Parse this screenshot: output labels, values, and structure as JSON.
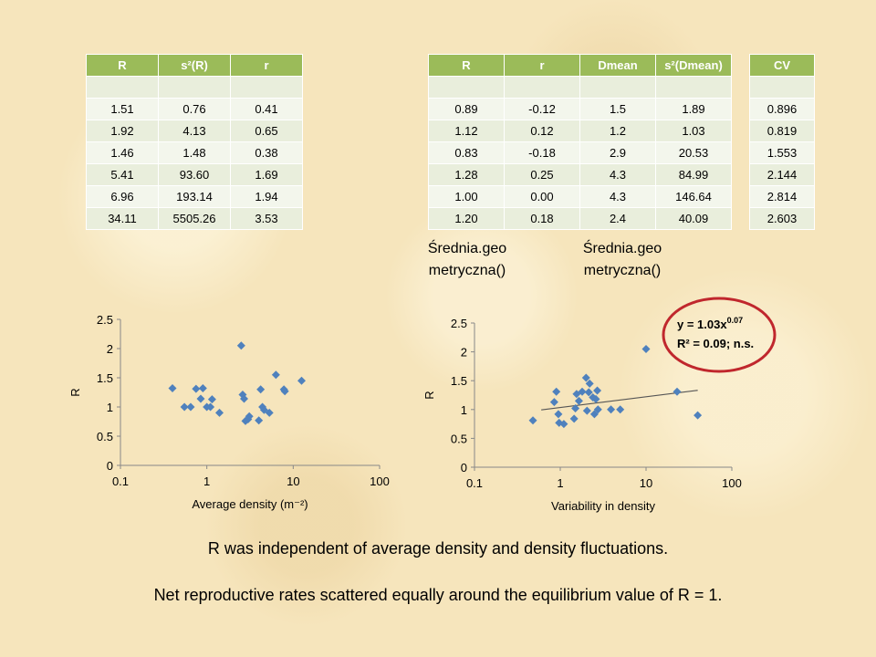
{
  "table1": {
    "headers": [
      "R",
      "s²(R)",
      "r"
    ],
    "rows": [
      [
        "",
        "",
        ""
      ],
      [
        "1.51",
        "0.76",
        "0.41"
      ],
      [
        "1.92",
        "4.13",
        "0.65"
      ],
      [
        "1.46",
        "1.48",
        "0.38"
      ],
      [
        "5.41",
        "93.60",
        "1.69"
      ],
      [
        "6.96",
        "193.14",
        "1.94"
      ],
      [
        "34.11",
        "5505.26",
        "3.53"
      ]
    ]
  },
  "table2": {
    "headers": [
      "R",
      "r",
      "Dmean",
      "s²(Dmean)"
    ],
    "rows": [
      [
        "",
        "",
        "",
        ""
      ],
      [
        "0.89",
        "-0.12",
        "1.5",
        "1.89"
      ],
      [
        "1.12",
        "0.12",
        "1.2",
        "1.03"
      ],
      [
        "0.83",
        "-0.18",
        "2.9",
        "20.53"
      ],
      [
        "1.28",
        "0.25",
        "4.3",
        "84.99"
      ],
      [
        "1.00",
        "0.00",
        "4.3",
        "146.64"
      ],
      [
        "1.20",
        "0.18",
        "2.4",
        "40.09"
      ]
    ]
  },
  "table3": {
    "headers": [
      "CV"
    ],
    "rows": [
      [
        ""
      ],
      [
        "0.896"
      ],
      [
        "0.819"
      ],
      [
        "1.553"
      ],
      [
        "2.144"
      ],
      [
        "2.814"
      ],
      [
        "2.603"
      ]
    ]
  },
  "notes": {
    "note1": "Średnia.geo metryczna()",
    "note2": "Średnia.geo metryczna()"
  },
  "captions": {
    "line1": "R was independent of average density and density fluctuations.",
    "line2": "Net reproductive rates scattered equally around the equilibrium value of R = 1."
  },
  "colors": {
    "header_green": "#9bbb59",
    "marker_blue": "#4f81bd",
    "circle_red": "#c0272d"
  },
  "chart_data": [
    {
      "type": "scatter",
      "x_scale": "log",
      "xlabel": "Average density (m⁻²)",
      "ylabel": "R",
      "xlim": [
        0.1,
        100
      ],
      "ylim": [
        0,
        2.5
      ],
      "xticks": [
        "0.1",
        "1",
        "10",
        "100"
      ],
      "yticks": [
        "0",
        "0.5",
        "1",
        "1.5",
        "2",
        "2.5"
      ],
      "series": [
        {
          "points": [
            [
              0.4,
              1.32
            ],
            [
              0.55,
              1.0
            ],
            [
              0.65,
              1.0
            ],
            [
              0.75,
              1.31
            ],
            [
              0.85,
              1.14
            ],
            [
              0.9,
              1.32
            ],
            [
              1.0,
              1.0
            ],
            [
              1.1,
              1.0
            ],
            [
              1.15,
              1.13
            ],
            [
              1.4,
              0.9
            ],
            [
              2.5,
              2.05
            ],
            [
              2.6,
              1.21
            ],
            [
              2.7,
              1.14
            ],
            [
              2.8,
              0.76
            ],
            [
              3.0,
              0.79
            ],
            [
              3.1,
              0.84
            ],
            [
              4.0,
              0.77
            ],
            [
              4.2,
              1.3
            ],
            [
              4.4,
              1.0
            ],
            [
              4.6,
              0.95
            ],
            [
              5.3,
              0.9
            ],
            [
              6.3,
              1.55
            ],
            [
              7.8,
              1.3
            ],
            [
              8.0,
              1.27
            ],
            [
              12.5,
              1.45
            ]
          ]
        }
      ]
    },
    {
      "type": "scatter",
      "x_scale": "log",
      "xlabel": "Variability in density",
      "ylabel": "R",
      "xlim": [
        0.1,
        100
      ],
      "ylim": [
        0,
        2.5
      ],
      "xticks": [
        "0.1",
        "1",
        "10",
        "100"
      ],
      "yticks": [
        "0",
        "0.5",
        "1",
        "1.5",
        "2",
        "2.5"
      ],
      "trendline": {
        "equation": "y = 1.03x",
        "exponent": "0.07",
        "r2_text": "R² = 0.09; n.s.",
        "a": 1.03,
        "b": 0.07,
        "x_from": 0.6,
        "x_to": 40
      },
      "series": [
        {
          "points": [
            [
              0.48,
              0.81
            ],
            [
              0.85,
              1.13
            ],
            [
              0.9,
              1.31
            ],
            [
              0.95,
              0.92
            ],
            [
              0.97,
              0.77
            ],
            [
              1.1,
              0.75
            ],
            [
              1.45,
              0.84
            ],
            [
              1.5,
              1.02
            ],
            [
              1.55,
              1.27
            ],
            [
              1.65,
              1.15
            ],
            [
              1.8,
              1.31
            ],
            [
              2.0,
              1.55
            ],
            [
              2.05,
              0.98
            ],
            [
              2.15,
              1.3
            ],
            [
              2.2,
              1.45
            ],
            [
              2.4,
              1.21
            ],
            [
              2.5,
              0.92
            ],
            [
              2.6,
              1.18
            ],
            [
              2.7,
              1.33
            ],
            [
              2.75,
              1.0
            ],
            [
              3.9,
              1.0
            ],
            [
              5.0,
              1.0
            ],
            [
              10.0,
              2.05
            ],
            [
              23.0,
              1.31
            ],
            [
              40.0,
              0.9
            ]
          ]
        }
      ]
    }
  ]
}
